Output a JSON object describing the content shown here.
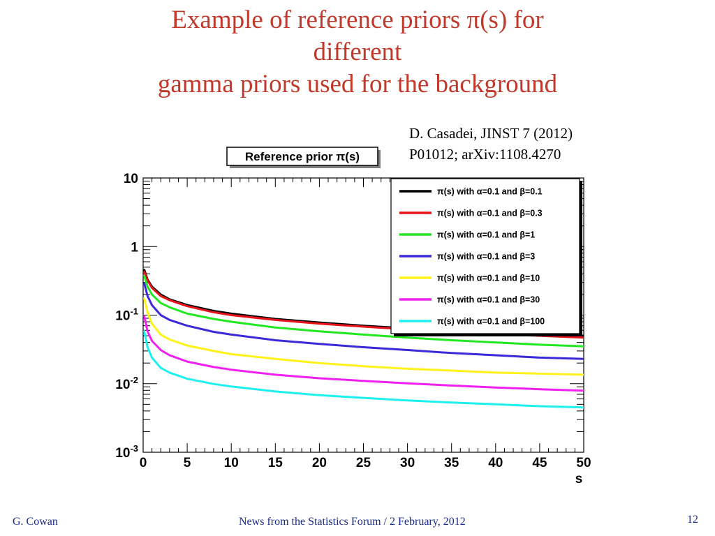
{
  "slide": {
    "title_line1": "Example of reference priors π(s) for",
    "title_line2": "different",
    "title_line3": "gamma priors used for the background",
    "reference_line1": "D. Casadei, JINST 7 (2012)",
    "reference_line2": "P01012;  arXiv:1108.4270",
    "footer_left": "G. Cowan",
    "footer_center": "News from the Statistics Forum / 2 February, 2012",
    "page_number": "12"
  },
  "chart_data": {
    "type": "line",
    "title": "Reference prior π(s)",
    "xlabel": "s",
    "ylabel": "",
    "xlim": [
      0,
      50
    ],
    "ylim": [
      0.001,
      10
    ],
    "yscale": "log",
    "grid": false,
    "legend_position": "top-right",
    "x_ticks": [
      "0",
      "5",
      "10",
      "15",
      "20",
      "25",
      "30",
      "35",
      "40",
      "45",
      "50"
    ],
    "y_ticks": [
      {
        "value": 10,
        "base": "10",
        "exp": ""
      },
      {
        "value": 1,
        "base": "1",
        "exp": ""
      },
      {
        "value": 0.1,
        "base": "10",
        "exp": "-1"
      },
      {
        "value": 0.01,
        "base": "10",
        "exp": "-2"
      },
      {
        "value": 0.001,
        "base": "10",
        "exp": "-3"
      }
    ],
    "series": [
      {
        "name": "π(s) with α=0.1 and β=0.1",
        "color": "#000000",
        "x": [
          0.1,
          0.5,
          1,
          2,
          3,
          5,
          8,
          10,
          15,
          20,
          25,
          30,
          35,
          40,
          45,
          50
        ],
        "y": [
          0.47,
          0.33,
          0.26,
          0.2,
          0.17,
          0.14,
          0.115,
          0.105,
          0.088,
          0.078,
          0.07,
          0.064,
          0.06,
          0.056,
          0.053,
          0.05
        ]
      },
      {
        "name": "π(s) with α=0.1 and β=0.3",
        "color": "#e8141c",
        "x": [
          0.1,
          0.5,
          1,
          2,
          3,
          5,
          8,
          10,
          15,
          20,
          25,
          30,
          35,
          40,
          45,
          50
        ],
        "y": [
          0.44,
          0.32,
          0.25,
          0.19,
          0.165,
          0.135,
          0.11,
          0.1,
          0.085,
          0.075,
          0.068,
          0.062,
          0.057,
          0.053,
          0.05,
          0.047
        ]
      },
      {
        "name": "π(s) with α=0.1 and β=1",
        "color": "#22e822",
        "x": [
          0.1,
          0.5,
          1,
          2,
          3,
          5,
          8,
          10,
          15,
          20,
          25,
          30,
          35,
          40,
          45,
          50
        ],
        "y": [
          0.38,
          0.26,
          0.2,
          0.15,
          0.13,
          0.105,
          0.088,
          0.08,
          0.066,
          0.058,
          0.052,
          0.047,
          0.043,
          0.04,
          0.037,
          0.035
        ]
      },
      {
        "name": "π(s) with α=0.1 and β=3",
        "color": "#3a2ad8",
        "x": [
          0.1,
          0.5,
          1,
          2,
          3,
          5,
          8,
          10,
          15,
          20,
          25,
          30,
          35,
          40,
          45,
          50
        ],
        "y": [
          0.3,
          0.19,
          0.14,
          0.1,
          0.085,
          0.07,
          0.057,
          0.052,
          0.043,
          0.038,
          0.034,
          0.031,
          0.028,
          0.026,
          0.024,
          0.023
        ]
      },
      {
        "name": "π(s) with α=0.1 and β=10",
        "color": "#fff21a",
        "x": [
          0.1,
          0.5,
          1,
          2,
          3,
          5,
          8,
          10,
          15,
          20,
          25,
          30,
          35,
          40,
          45,
          50
        ],
        "y": [
          0.18,
          0.11,
          0.075,
          0.052,
          0.044,
          0.036,
          0.03,
          0.027,
          0.023,
          0.02,
          0.018,
          0.0165,
          0.0155,
          0.0145,
          0.014,
          0.0135
        ]
      },
      {
        "name": "π(s) with α=0.1 and β=30",
        "color": "#f020f0",
        "x": [
          0.1,
          0.5,
          1,
          2,
          3,
          5,
          8,
          10,
          15,
          20,
          25,
          30,
          35,
          40,
          45,
          50
        ],
        "y": [
          0.1,
          0.058,
          0.042,
          0.031,
          0.026,
          0.021,
          0.0175,
          0.016,
          0.0135,
          0.012,
          0.011,
          0.0101,
          0.0094,
          0.0088,
          0.0083,
          0.0079
        ]
      },
      {
        "name": "π(s) with α=0.1 and β=100",
        "color": "#1ef0f0",
        "x": [
          0.1,
          0.5,
          1,
          2,
          3,
          5,
          8,
          10,
          15,
          20,
          25,
          30,
          35,
          40,
          45,
          50
        ],
        "y": [
          0.06,
          0.034,
          0.024,
          0.017,
          0.0145,
          0.0118,
          0.0099,
          0.0091,
          0.0077,
          0.0068,
          0.0062,
          0.0057,
          0.0053,
          0.005,
          0.0047,
          0.0045
        ]
      }
    ]
  }
}
